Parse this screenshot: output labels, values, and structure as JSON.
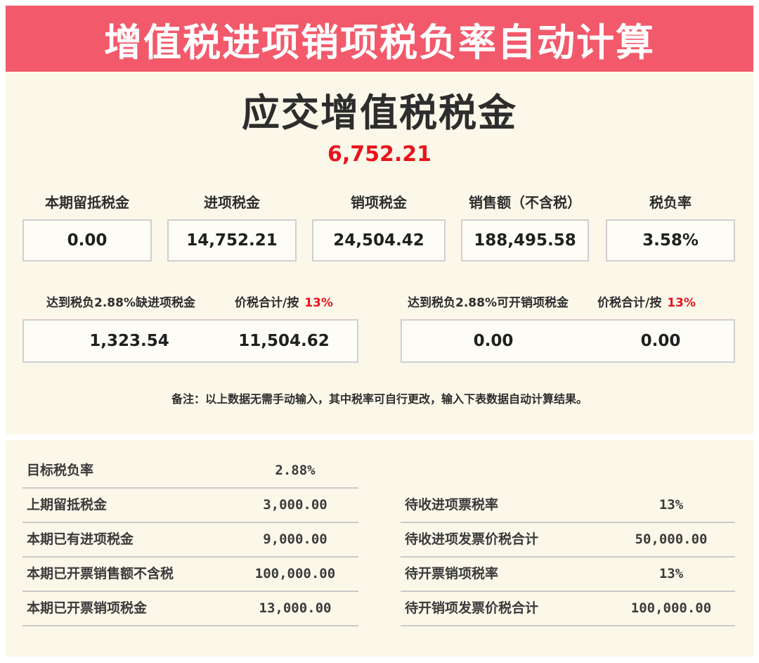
{
  "header": {
    "title": "增值税进项销项税负率自动计算"
  },
  "summary": {
    "title": "应交增值税税金",
    "value": "6,752.21"
  },
  "metrics": [
    {
      "label": "本期留抵税金",
      "value": "0.00"
    },
    {
      "label": "进项税金",
      "value": "14,752.21"
    },
    {
      "label": "销项税金",
      "value": "24,504.42"
    },
    {
      "label": "销售额（不含税）",
      "value": "188,495.58"
    },
    {
      "label": "税负率",
      "value": "3.58%"
    }
  ],
  "gap_input": {
    "label": "达到税负2.88%缺进项税金",
    "total_label": "价税合计/按",
    "rate": "13%",
    "tax_value": "1,323.54",
    "total_value": "11,504.62"
  },
  "gap_output": {
    "label": "达到税负2.88%可开销项税金",
    "total_label": "价税合计/按",
    "rate": "13%",
    "tax_value": "0.00",
    "total_value": "0.00"
  },
  "note": "备注：以上数据无需手动输入，其中税率可自行更改，输入下表数据自动计算结果。",
  "inputs_left": [
    {
      "label": "目标税负率",
      "value": "2.88%"
    },
    {
      "label": "上期留抵税金",
      "value": "3,000.00"
    },
    {
      "label": "本期已有进项税金",
      "value": "9,000.00"
    },
    {
      "label": "本期已开票销售额不含税",
      "value": "100,000.00"
    },
    {
      "label": "本期已开票销项税金",
      "value": "13,000.00"
    }
  ],
  "inputs_right": [
    {
      "label": "待收进项票税率",
      "value": "13%"
    },
    {
      "label": "待收进项发票价税合计",
      "value": "50,000.00"
    },
    {
      "label": "待开票销项税率",
      "value": "13%"
    },
    {
      "label": "待开销项发票价税合计",
      "value": "100,000.00"
    }
  ],
  "colors": {
    "banner": "#f25a6b",
    "panel": "#fbf8ea",
    "highlight": "#e8141c"
  }
}
